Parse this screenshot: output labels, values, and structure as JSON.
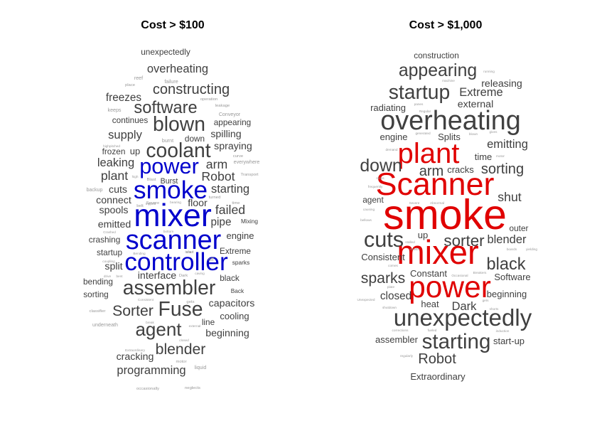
{
  "chart_data": [
    {
      "type": "wordcloud",
      "title": "Cost > $100",
      "colors": {
        "highlight": "#0000cc",
        "normal": "#404040",
        "faint": "#9a9a9a"
      },
      "words": [
        {
          "text": "unexpectedly",
          "weight": 10,
          "color": "normal"
        },
        {
          "text": "overheating",
          "weight": 14,
          "color": "normal"
        },
        {
          "text": "constructing",
          "weight": 17,
          "color": "normal"
        },
        {
          "text": "freezes",
          "weight": 13,
          "color": "normal"
        },
        {
          "text": "software",
          "weight": 20,
          "color": "normal"
        },
        {
          "text": "continues",
          "weight": 10,
          "color": "normal"
        },
        {
          "text": "blown",
          "weight": 24,
          "color": "normal"
        },
        {
          "text": "appearing",
          "weight": 10,
          "color": "normal"
        },
        {
          "text": "supply",
          "weight": 14,
          "color": "normal"
        },
        {
          "text": "down",
          "weight": 10,
          "color": "normal"
        },
        {
          "text": "spilling",
          "weight": 12,
          "color": "normal"
        },
        {
          "text": "coolant",
          "weight": 24,
          "color": "normal"
        },
        {
          "text": "spraying",
          "weight": 12,
          "color": "normal"
        },
        {
          "text": "frozen",
          "weight": 10,
          "color": "normal"
        },
        {
          "text": "up",
          "weight": 11,
          "color": "normal"
        },
        {
          "text": "leaking",
          "weight": 14,
          "color": "normal"
        },
        {
          "text": "power",
          "weight": 26,
          "color": "highlight"
        },
        {
          "text": "arm",
          "weight": 15,
          "color": "normal"
        },
        {
          "text": "plant",
          "weight": 15,
          "color": "normal"
        },
        {
          "text": "Robot",
          "weight": 15,
          "color": "normal"
        },
        {
          "text": "Burst",
          "weight": 9,
          "color": "normal"
        },
        {
          "text": "smoke",
          "weight": 30,
          "color": "highlight"
        },
        {
          "text": "cuts",
          "weight": 12,
          "color": "normal"
        },
        {
          "text": "starting",
          "weight": 14,
          "color": "normal"
        },
        {
          "text": "connect",
          "weight": 12,
          "color": "normal"
        },
        {
          "text": "floor",
          "weight": 12,
          "color": "normal"
        },
        {
          "text": "spools",
          "weight": 12,
          "color": "normal"
        },
        {
          "text": "failed",
          "weight": 15,
          "color": "normal"
        },
        {
          "text": "mixer",
          "weight": 38,
          "color": "highlight"
        },
        {
          "text": "emitted",
          "weight": 12,
          "color": "normal"
        },
        {
          "text": "pipe",
          "weight": 13,
          "color": "normal"
        },
        {
          "text": "engine",
          "weight": 11,
          "color": "normal"
        },
        {
          "text": "crashing",
          "weight": 10,
          "color": "normal"
        },
        {
          "text": "scanner",
          "weight": 32,
          "color": "highlight"
        },
        {
          "text": "startup",
          "weight": 10,
          "color": "normal"
        },
        {
          "text": "Extreme",
          "weight": 10,
          "color": "normal"
        },
        {
          "text": "split",
          "weight": 12,
          "color": "normal"
        },
        {
          "text": "controller",
          "weight": 30,
          "color": "highlight"
        },
        {
          "text": "bending",
          "weight": 10,
          "color": "normal"
        },
        {
          "text": "interface",
          "weight": 12,
          "color": "normal"
        },
        {
          "text": "black",
          "weight": 10,
          "color": "normal"
        },
        {
          "text": "assembler",
          "weight": 24,
          "color": "normal"
        },
        {
          "text": "sorting",
          "weight": 10,
          "color": "normal"
        },
        {
          "text": "Sorter",
          "weight": 18,
          "color": "normal"
        },
        {
          "text": "Fuse",
          "weight": 24,
          "color": "normal"
        },
        {
          "text": "capacitors",
          "weight": 12,
          "color": "normal"
        },
        {
          "text": "cooling",
          "weight": 11,
          "color": "normal"
        },
        {
          "text": "line",
          "weight": 10,
          "color": "normal"
        },
        {
          "text": "agent",
          "weight": 22,
          "color": "normal"
        },
        {
          "text": "beginning",
          "weight": 12,
          "color": "normal"
        },
        {
          "text": "blender",
          "weight": 18,
          "color": "normal"
        },
        {
          "text": "cracking",
          "weight": 12,
          "color": "normal"
        },
        {
          "text": "programming",
          "weight": 14,
          "color": "normal"
        },
        {
          "text": "Back",
          "weight": 7,
          "color": "normal"
        },
        {
          "text": "Mixing",
          "weight": 7,
          "color": "normal"
        },
        {
          "text": "sparks",
          "weight": 7,
          "color": "normal"
        },
        {
          "text": "failure",
          "weight": 6,
          "color": "faint"
        },
        {
          "text": "reef",
          "weight": 6,
          "color": "faint"
        },
        {
          "text": "place",
          "weight": 5,
          "color": "faint"
        },
        {
          "text": "operation",
          "weight": 5,
          "color": "faint"
        },
        {
          "text": "leakage",
          "weight": 5,
          "color": "faint"
        },
        {
          "text": "keeps",
          "weight": 6,
          "color": "faint"
        },
        {
          "text": "Conveyor",
          "weight": 6,
          "color": "faint"
        },
        {
          "text": "burnt",
          "weight": 6,
          "color": "faint"
        },
        {
          "text": "curve",
          "weight": 5,
          "color": "faint"
        },
        {
          "text": "everywhere",
          "weight": 6,
          "color": "faint"
        },
        {
          "text": "Transport",
          "weight": 5,
          "color": "faint"
        },
        {
          "text": "time",
          "weight": 5,
          "color": "faint"
        },
        {
          "text": "backup",
          "weight": 6,
          "color": "faint"
        },
        {
          "text": "belt",
          "weight": 5,
          "color": "faint"
        },
        {
          "text": "Severe",
          "weight": 5,
          "color": "faint"
        },
        {
          "text": "turned",
          "weight": 5,
          "color": "faint"
        },
        {
          "text": "Blast",
          "weight": 5,
          "color": "faint"
        },
        {
          "text": "off",
          "weight": 6,
          "color": "faint"
        },
        {
          "text": "gets",
          "weight": 5,
          "color": "faint"
        },
        {
          "text": "classifier",
          "weight": 5,
          "color": "faint"
        },
        {
          "text": "underneath",
          "weight": 6,
          "color": "faint"
        },
        {
          "text": "motor",
          "weight": 5,
          "color": "faint"
        },
        {
          "text": "liquid",
          "weight": 6,
          "color": "faint"
        },
        {
          "text": "neglects",
          "weight": 5,
          "color": "faint"
        },
        {
          "text": "occasionally",
          "weight": 5,
          "color": "faint"
        },
        {
          "text": "Dark",
          "weight": 5,
          "color": "faint"
        },
        {
          "text": "shut",
          "weight": 5,
          "color": "faint"
        },
        {
          "text": "Bending",
          "weight": 4,
          "color": "faint"
        },
        {
          "text": "Crashed",
          "weight": 4,
          "color": "faint"
        },
        {
          "text": "Consistent",
          "weight": 4,
          "color": "faint"
        },
        {
          "text": "closed",
          "weight": 4,
          "color": "faint"
        },
        {
          "text": "coupling",
          "weight": 4,
          "color": "faint"
        },
        {
          "text": "bottom",
          "weight": 4,
          "color": "faint"
        },
        {
          "text": "high",
          "weight": 4,
          "color": "faint"
        },
        {
          "text": "Extraordinary",
          "weight": 4,
          "color": "faint"
        },
        {
          "text": "external",
          "weight": 4,
          "color": "faint"
        },
        {
          "text": "break",
          "weight": 4,
          "color": "faint"
        },
        {
          "text": "highpitched",
          "weight": 4,
          "color": "faint"
        },
        {
          "text": "bearing",
          "weight": 4,
          "color": "faint"
        },
        {
          "text": "tripped",
          "weight": 4,
          "color": "faint"
        },
        {
          "text": "heat",
          "weight": 4,
          "color": "faint"
        },
        {
          "text": "caving",
          "weight": 4,
          "color": "faint"
        },
        {
          "text": "drive",
          "weight": 4,
          "color": "faint"
        },
        {
          "text": "bent",
          "weight": 4,
          "color": "faint"
        }
      ]
    },
    {
      "type": "wordcloud",
      "title": "Cost > $1,000",
      "colors": {
        "highlight": "#e00000",
        "normal": "#404040",
        "faint": "#9a9a9a"
      },
      "words": [
        {
          "text": "construction",
          "weight": 10,
          "color": "normal"
        },
        {
          "text": "appearing",
          "weight": 21,
          "color": "normal"
        },
        {
          "text": "releasing",
          "weight": 12,
          "color": "normal"
        },
        {
          "text": "startup",
          "weight": 24,
          "color": "normal"
        },
        {
          "text": "Extreme",
          "weight": 14,
          "color": "normal"
        },
        {
          "text": "external",
          "weight": 12,
          "color": "normal"
        },
        {
          "text": "radiating",
          "weight": 11,
          "color": "normal"
        },
        {
          "text": "overheating",
          "weight": 32,
          "color": "normal"
        },
        {
          "text": "engine",
          "weight": 11,
          "color": "normal"
        },
        {
          "text": "Splits",
          "weight": 11,
          "color": "normal"
        },
        {
          "text": "emitting",
          "weight": 14,
          "color": "normal"
        },
        {
          "text": "plant",
          "weight": 34,
          "color": "highlight"
        },
        {
          "text": "time",
          "weight": 11,
          "color": "normal"
        },
        {
          "text": "down",
          "weight": 21,
          "color": "normal"
        },
        {
          "text": "arm",
          "weight": 17,
          "color": "normal"
        },
        {
          "text": "cracks",
          "weight": 11,
          "color": "normal"
        },
        {
          "text": "sorting",
          "weight": 17,
          "color": "normal"
        },
        {
          "text": "Scanner",
          "weight": 38,
          "color": "highlight"
        },
        {
          "text": "shut",
          "weight": 15,
          "color": "normal"
        },
        {
          "text": "agent",
          "weight": 10,
          "color": "normal"
        },
        {
          "text": "smoke",
          "weight": 50,
          "color": "highlight"
        },
        {
          "text": "outer",
          "weight": 10,
          "color": "normal"
        },
        {
          "text": "cuts",
          "weight": 26,
          "color": "normal"
        },
        {
          "text": "up",
          "weight": 11,
          "color": "normal"
        },
        {
          "text": "sorter",
          "weight": 19,
          "color": "normal"
        },
        {
          "text": "blender",
          "weight": 14,
          "color": "normal"
        },
        {
          "text": "mixer",
          "weight": 40,
          "color": "highlight"
        },
        {
          "text": "black",
          "weight": 20,
          "color": "normal"
        },
        {
          "text": "Consistent",
          "weight": 11,
          "color": "normal"
        },
        {
          "text": "sparks",
          "weight": 18,
          "color": "normal"
        },
        {
          "text": "Constant",
          "weight": 11,
          "color": "normal"
        },
        {
          "text": "Software",
          "weight": 11,
          "color": "normal"
        },
        {
          "text": "power",
          "weight": 36,
          "color": "highlight"
        },
        {
          "text": "closed",
          "weight": 13,
          "color": "normal"
        },
        {
          "text": "beginning",
          "weight": 11,
          "color": "normal"
        },
        {
          "text": "Dark",
          "weight": 14,
          "color": "normal"
        },
        {
          "text": "heat",
          "weight": 11,
          "color": "normal"
        },
        {
          "text": "unexpectedly",
          "weight": 28,
          "color": "normal"
        },
        {
          "text": "starting",
          "weight": 25,
          "color": "normal"
        },
        {
          "text": "assembler",
          "weight": 11,
          "color": "normal"
        },
        {
          "text": "start-up",
          "weight": 11,
          "color": "normal"
        },
        {
          "text": "Robot",
          "weight": 17,
          "color": "normal"
        },
        {
          "text": "Extraordinary",
          "weight": 11,
          "color": "normal"
        },
        {
          "text": "running",
          "weight": 4,
          "color": "faint"
        },
        {
          "text": "machine",
          "weight": 4,
          "color": "faint"
        },
        {
          "text": "panes",
          "weight": 4,
          "color": "faint"
        },
        {
          "text": "Regular",
          "weight": 4,
          "color": "faint"
        },
        {
          "text": "generated",
          "weight": 4,
          "color": "faint"
        },
        {
          "text": "blown",
          "weight": 4,
          "color": "faint"
        },
        {
          "text": "gives",
          "weight": 4,
          "color": "faint"
        },
        {
          "text": "demand",
          "weight": 4,
          "color": "faint"
        },
        {
          "text": "motor",
          "weight": 4,
          "color": "faint"
        },
        {
          "text": "stops",
          "weight": 4,
          "color": "faint"
        },
        {
          "text": "frequently",
          "weight": 4,
          "color": "faint"
        },
        {
          "text": "Severe",
          "weight": 4,
          "color": "faint"
        },
        {
          "text": "Abnormal",
          "weight": 4,
          "color": "faint"
        },
        {
          "text": "causing",
          "weight": 4,
          "color": "faint"
        },
        {
          "text": "bellows",
          "weight": 4,
          "color": "faint"
        },
        {
          "text": "stalled",
          "weight": 4,
          "color": "faint"
        },
        {
          "text": "smells",
          "weight": 4,
          "color": "faint"
        },
        {
          "text": "comes",
          "weight": 4,
          "color": "faint"
        },
        {
          "text": "Occasional",
          "weight": 4,
          "color": "faint"
        },
        {
          "text": "Breakers",
          "weight": 4,
          "color": "faint"
        },
        {
          "text": "boards",
          "weight": 4,
          "color": "faint"
        },
        {
          "text": "yielding",
          "weight": 4,
          "color": "faint"
        },
        {
          "text": "plate",
          "weight": 4,
          "color": "faint"
        },
        {
          "text": "Unexpected",
          "weight": 4,
          "color": "faint"
        },
        {
          "text": "gets",
          "weight": 4,
          "color": "faint"
        },
        {
          "text": "shutdown",
          "weight": 4,
          "color": "faint"
        },
        {
          "text": "shorts",
          "weight": 4,
          "color": "faint"
        },
        {
          "text": "corrections",
          "weight": 4,
          "color": "faint"
        },
        {
          "text": "fueled",
          "weight": 4,
          "color": "faint"
        },
        {
          "text": "induction",
          "weight": 4,
          "color": "faint"
        },
        {
          "text": "regularly",
          "weight": 4,
          "color": "faint"
        }
      ]
    }
  ]
}
